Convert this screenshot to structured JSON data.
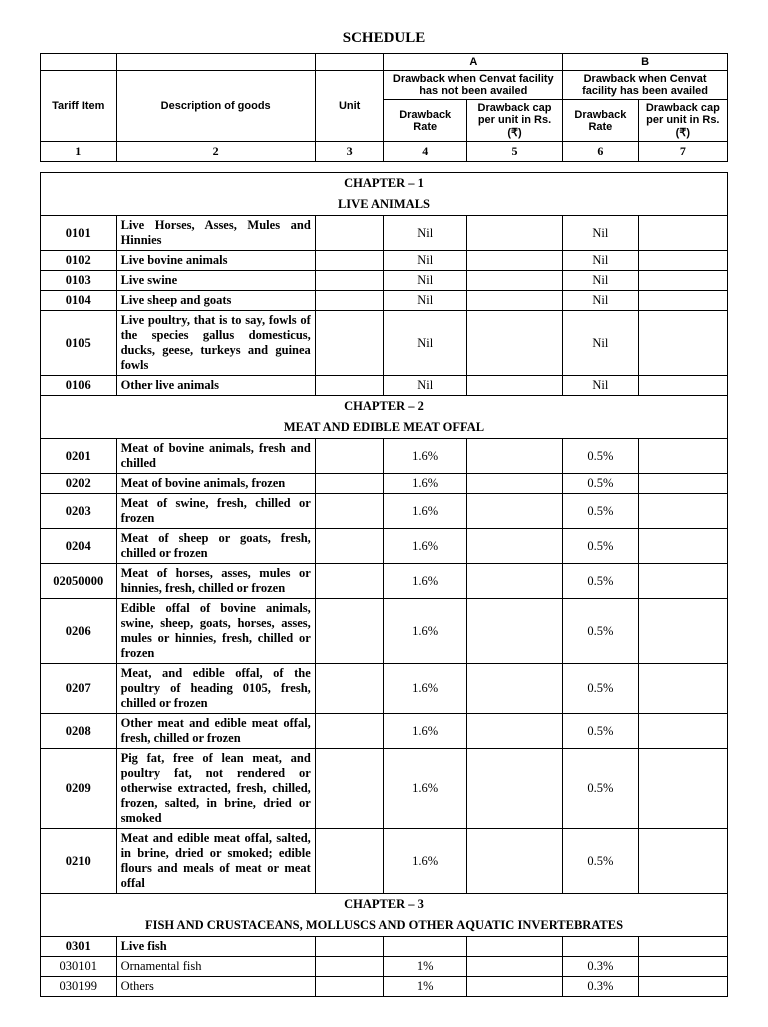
{
  "title": "SCHEDULE",
  "header": {
    "groupA": "A",
    "groupB": "B",
    "tariff": "Tariff Item",
    "desc": "Description of goods",
    "unit": "Unit",
    "facA": "Drawback when Cenvat facility has not been availed",
    "facB": "Drawback when Cenvat facility has  been availed",
    "rate": "Drawback Rate",
    "cap": "Drawback cap per unit in Rs.(₹)",
    "nums": [
      "1",
      "2",
      "3",
      "4",
      "5",
      "6",
      "7"
    ]
  },
  "chapters": [
    {
      "heading": "CHAPTER – 1",
      "sub": "LIVE ANIMALS",
      "rows": [
        {
          "c1": "0101",
          "bold": true,
          "c2": "Live Horses, Asses, Mules and Hinnies",
          "c4": "Nil",
          "c6": "Nil"
        },
        {
          "c1": "0102",
          "bold": true,
          "c2": "Live bovine animals",
          "c4": "Nil",
          "c6": "Nil"
        },
        {
          "c1": "0103",
          "bold": true,
          "c2": "Live swine",
          "c4": "Nil",
          "c6": "Nil"
        },
        {
          "c1": "0104",
          "bold": true,
          "c2": "Live sheep and goats",
          "c4": "Nil",
          "c6": "Nil"
        },
        {
          "c1": "0105",
          "bold": true,
          "c2": "Live poultry, that is to say, fowls of the species gallus domesticus, ducks, geese, turkeys and guinea fowls",
          "c4": "Nil",
          "c6": "Nil"
        },
        {
          "c1": "0106",
          "bold": true,
          "c2": "Other live animals",
          "c4": "Nil",
          "c6": "Nil"
        }
      ]
    },
    {
      "heading": "CHAPTER – 2",
      "sub": "MEAT AND EDIBLE MEAT OFFAL",
      "rows": [
        {
          "c1": "0201",
          "bold": true,
          "c2": "Meat of bovine animals, fresh and chilled",
          "c4": "1.6%",
          "c6": "0.5%"
        },
        {
          "c1": "0202",
          "bold": true,
          "c2": "Meat of bovine animals, frozen",
          "c4": "1.6%",
          "c6": "0.5%"
        },
        {
          "c1": "0203",
          "bold": true,
          "c2": "Meat of swine, fresh, chilled or frozen",
          "c4": "1.6%",
          "c6": "0.5%"
        },
        {
          "c1": "0204",
          "bold": true,
          "c2": "Meat of sheep or goats, fresh, chilled or frozen",
          "c4": "1.6%",
          "c6": "0.5%"
        },
        {
          "c1": "02050000",
          "bold": true,
          "c2": "Meat of horses, asses, mules or hinnies, fresh, chilled or frozen",
          "c4": "1.6%",
          "c6": "0.5%"
        },
        {
          "c1": "0206",
          "bold": true,
          "c2": "Edible offal of bovine animals, swine, sheep, goats, horses, asses,  mules or hinnies, fresh, chilled or frozen",
          "c4": "1.6%",
          "c6": "0.5%"
        },
        {
          "c1": "0207",
          "bold": true,
          "c2": "Meat, and edible offal, of the poultry of heading 0105, fresh, chilled or frozen",
          "c4": "1.6%",
          "c6": "0.5%"
        },
        {
          "c1": "0208",
          "bold": true,
          "c2": "Other meat and edible meat offal, fresh, chilled or frozen",
          "c4": "1.6%",
          "c6": "0.5%"
        },
        {
          "c1": "0209",
          "bold": true,
          "c2": "Pig fat, free of lean meat, and poultry fat, not rendered or otherwise extracted, fresh, chilled, frozen, salted, in brine, dried or smoked",
          "c4": "1.6%",
          "c6": "0.5%"
        },
        {
          "c1": "0210",
          "bold": true,
          "c2": "Meat and edible meat offal, salted, in brine, dried or smoked; edible flours and meals of meat or meat offal",
          "c4": "1.6%",
          "c6": "0.5%"
        }
      ]
    },
    {
      "heading": "CHAPTER – 3",
      "sub": "FISH AND CRUSTACEANS, MOLLUSCS AND OTHER AQUATIC INVERTEBRATES",
      "rows": [
        {
          "c1": "0301",
          "bold": true,
          "c2": "Live fish",
          "c4": "",
          "c6": ""
        },
        {
          "c1": "030101",
          "bold": false,
          "c2": "Ornamental fish",
          "c4": "1%",
          "c6": "0.3%"
        },
        {
          "c1": "030199",
          "bold": false,
          "c2": "Others",
          "c4": "1%",
          "c6": "0.3%"
        }
      ]
    }
  ]
}
